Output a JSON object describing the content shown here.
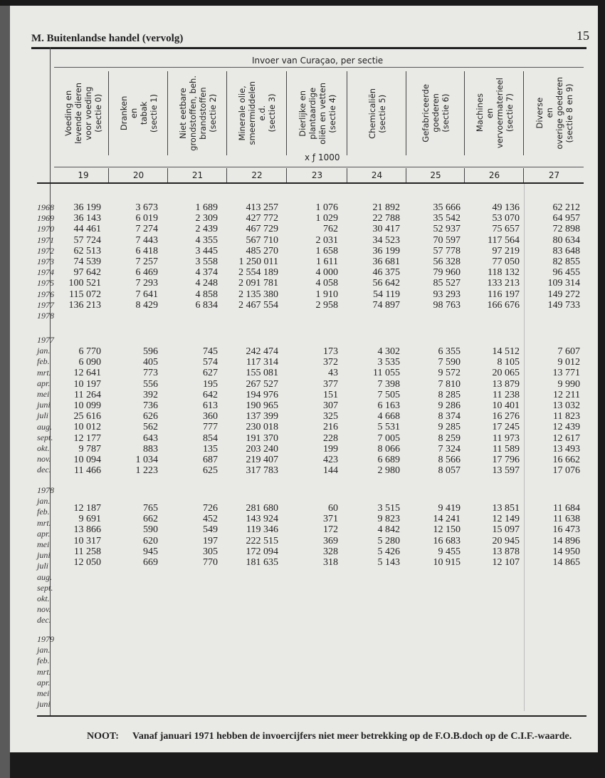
{
  "header": {
    "title": "M. Buitenlandse handel (vervolg)",
    "page_number": "15",
    "group_title": "Invoer van Curaçao, per sectie",
    "unit": "x ƒ 1000"
  },
  "columns": [
    {
      "num": "19",
      "label": "Voeding en\nlevende dieren\nvoor voeding\n(sectie 0)"
    },
    {
      "num": "20",
      "label": "Dranken\nen\ntabak\n(sectie 1)"
    },
    {
      "num": "21",
      "label": "Niet eetbare\ngrondstoffen, beh.\nbrandstoffen\n(sectie 2)"
    },
    {
      "num": "22",
      "label": "Minerale olie,\nsmeermiddelen\ne.d.\n(sectie 3)"
    },
    {
      "num": "23",
      "label": "Dierlijke en\nplantaardige\noliën en vetten\n(sectie 4)"
    },
    {
      "num": "24",
      "label": "Chemicaliën\n(sectie 5)"
    },
    {
      "num": "25",
      "label": "Gefabriceerde\ngoederen\n(sectie 6)"
    },
    {
      "num": "26",
      "label": "Machines\nen\nvervoermaterieel\n(sectie 7)"
    },
    {
      "num": "27",
      "label": "Diverse\nen\noverige goederen\n(sectie 8 en 9)"
    }
  ],
  "sections": [
    {
      "labels": [
        "1968",
        "1969",
        "1970",
        "1971",
        "1972",
        "1973",
        "1974",
        "1975",
        "1976",
        "1977",
        "1978"
      ],
      "rows": [
        [
          "36 199",
          "3 673",
          "1 689",
          "413 257",
          "1 076",
          "21 892",
          "35 666",
          "49 136",
          "62 212"
        ],
        [
          "36 143",
          "6 019",
          "2 309",
          "427 772",
          "1 029",
          "22 788",
          "35 542",
          "53 070",
          "64 957"
        ],
        [
          "44 461",
          "7 274",
          "2 439",
          "467 729",
          "762",
          "30 417",
          "52 937",
          "75 657",
          "72 898"
        ],
        [
          "57 724",
          "7 443",
          "4 355",
          "567 710",
          "2 031",
          "34 523",
          "70 597",
          "117 564",
          "80 634"
        ],
        [
          "62 513",
          "6 418",
          "3 445",
          "485 270",
          "1 658",
          "36 199",
          "57 778",
          "97 219",
          "83 648"
        ],
        [
          "74 539",
          "7 257",
          "3 558",
          "1 250 011",
          "1 611",
          "36 681",
          "56 328",
          "77 050",
          "82 855"
        ],
        [
          "97 642",
          "6 469",
          "4 374",
          "2 554 189",
          "4 000",
          "46 375",
          "79 960",
          "118 132",
          "96 455"
        ],
        [
          "100 521",
          "7 293",
          "4 248",
          "2 091 781",
          "4 058",
          "56 642",
          "85 527",
          "133 213",
          "109 314"
        ],
        [
          "115 072",
          "7 641",
          "4 858",
          "2 135 380",
          "1 910",
          "54 119",
          "93 293",
          "116 197",
          "149 272"
        ],
        [
          "136 213",
          "8 429",
          "6 834",
          "2 467 554",
          "2 958",
          "74 897",
          "98 763",
          "166 676",
          "149 733"
        ]
      ]
    },
    {
      "labels": [
        "1977",
        "jan.",
        "feb.",
        "mrt.",
        "apr.",
        "mei",
        "juni",
        "juli",
        "aug.",
        "sept.",
        "okt.",
        "nov.",
        "dec."
      ],
      "rows": [
        [
          "6 770",
          "596",
          "745",
          "242 474",
          "173",
          "4 302",
          "6 355",
          "14 512",
          "7 607"
        ],
        [
          "6 090",
          "405",
          "574",
          "117 314",
          "372",
          "3 535",
          "7 590",
          "8 105",
          "9 012"
        ],
        [
          "12 641",
          "773",
          "627",
          "155 081",
          "43",
          "11 055",
          "9 572",
          "20 065",
          "13 771"
        ],
        [
          "10 197",
          "556",
          "195",
          "267 527",
          "377",
          "7 398",
          "7 810",
          "13 879",
          "9 990"
        ],
        [
          "11 264",
          "392",
          "642",
          "194 976",
          "151",
          "7 505",
          "8 285",
          "11 238",
          "12 211"
        ],
        [
          "10 099",
          "736",
          "613",
          "190 965",
          "307",
          "6 163",
          "9 286",
          "10 401",
          "13 032"
        ],
        [
          "25 616",
          "626",
          "360",
          "137 399",
          "325",
          "4 668",
          "8 374",
          "16 276",
          "11 823"
        ],
        [
          "10 012",
          "562",
          "777",
          "230 018",
          "216",
          "5 531",
          "9 285",
          "17 245",
          "12 439"
        ],
        [
          "12 177",
          "643",
          "854",
          "191 370",
          "228",
          "7 005",
          "8 259",
          "11 973",
          "12 617"
        ],
        [
          "9 787",
          "883",
          "135",
          "203 240",
          "199",
          "8 066",
          "7 324",
          "11 589",
          "13 493"
        ],
        [
          "10 094",
          "1 034",
          "687",
          "219 407",
          "423",
          "6 689",
          "8 566",
          "17 796",
          "16 662"
        ],
        [
          "11 466",
          "1 223",
          "625",
          "317 783",
          "144",
          "2 980",
          "8 057",
          "13 597",
          "17 076"
        ]
      ]
    },
    {
      "labels": [
        "1978",
        "jan.",
        "feb.",
        "mrt.",
        "apr.",
        "mei",
        "juni",
        "juli",
        "aug.",
        "sept.",
        "okt.",
        "nov.",
        "dec."
      ],
      "rows": [
        [
          "12 187",
          "765",
          "726",
          "281 680",
          "60",
          "3 515",
          "9 419",
          "13 851",
          "11 684"
        ],
        [
          "9 691",
          "662",
          "452",
          "143 924",
          "371",
          "9 823",
          "14 241",
          "12 149",
          "11 638"
        ],
        [
          "13 866",
          "590",
          "549",
          "119 346",
          "172",
          "4 842",
          "12 150",
          "15 097",
          "16 473"
        ],
        [
          "10 317",
          "620",
          "197",
          "222 515",
          "369",
          "5 280",
          "16 683",
          "20 945",
          "14 896"
        ],
        [
          "11 258",
          "945",
          "305",
          "172 094",
          "328",
          "5 426",
          "9 455",
          "13 878",
          "14 950"
        ],
        [
          "12 050",
          "669",
          "770",
          "181 635",
          "318",
          "5 143",
          "10 915",
          "12 107",
          "14 865"
        ]
      ]
    },
    {
      "labels": [
        "1979",
        "jan.",
        "feb.",
        "mrt.",
        "apr.",
        "mei",
        "juni"
      ],
      "rows": []
    }
  ],
  "note": {
    "label": "NOOT:",
    "text": "Vanaf januari 1971 hebben de invoercijfers niet meer betrekking op de F.O.B.doch op de C.I.F.-waarde."
  }
}
